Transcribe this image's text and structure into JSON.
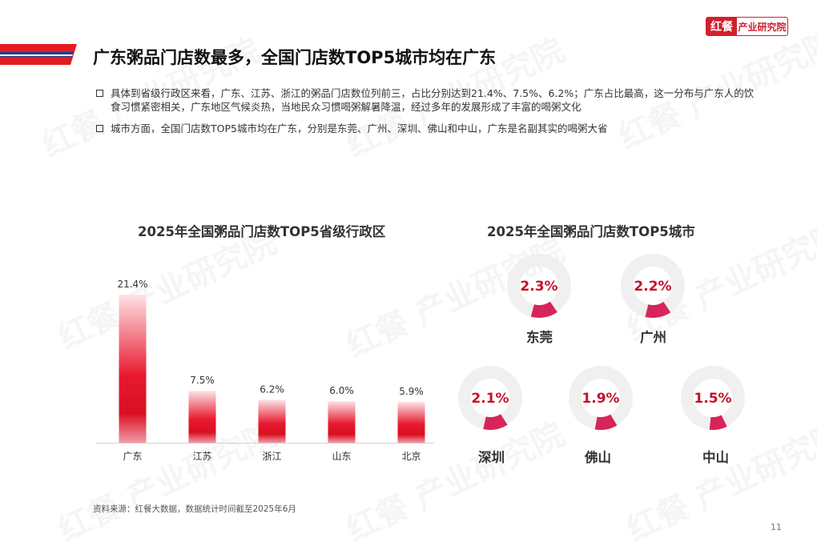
{
  "brand": {
    "mark": "红餐",
    "name": "产业研究院"
  },
  "title": "广东粥品门店数最多，全国门店数TOP5城市均在广东",
  "bullets": [
    "具体到省级行政区来看，广东、江苏、浙江的粥品门店数位列前三，占比分别达到21.4%、7.5%、6.2%；广东占比最高，这一分布与广东人的饮食习惯紧密相关，广东地区气候炎热，当地民众习惯喝粥解暑降温，经过多年的发展形成了丰富的喝粥文化",
    "城市方面，全国门店数TOP5城市均在广东，分别是东莞、广州、深圳、佛山和中山，广东是名副其实的喝粥大省"
  ],
  "chart_data": [
    {
      "type": "bar",
      "title": "2025年全国粥品门店数TOP5省级行政区",
      "categories": [
        "广东",
        "江苏",
        "浙江",
        "山东",
        "北京"
      ],
      "values": [
        21.4,
        7.5,
        6.2,
        6.0,
        5.9
      ],
      "value_labels": [
        "21.4%",
        "7.5%",
        "6.2%",
        "6.0%",
        "5.9%"
      ],
      "ylim": [
        0,
        22
      ],
      "grid": false,
      "color": "#e0182d"
    },
    {
      "type": "pie",
      "title": "2025年全国粥品门店数TOP5城市",
      "categories": [
        "东莞",
        "广州",
        "深圳",
        "佛山",
        "中山"
      ],
      "values": [
        2.3,
        2.2,
        2.1,
        1.9,
        1.5
      ],
      "value_labels": [
        "2.3%",
        "2.2%",
        "2.1%",
        "1.9%",
        "1.5%"
      ],
      "color": "#d6255a",
      "ring_color": "#f0f0f0"
    }
  ],
  "source": "资料来源：红餐大数据，数据统计时间截至2025年6月",
  "watermark": "红餐 产业研究院",
  "page_number": "11"
}
